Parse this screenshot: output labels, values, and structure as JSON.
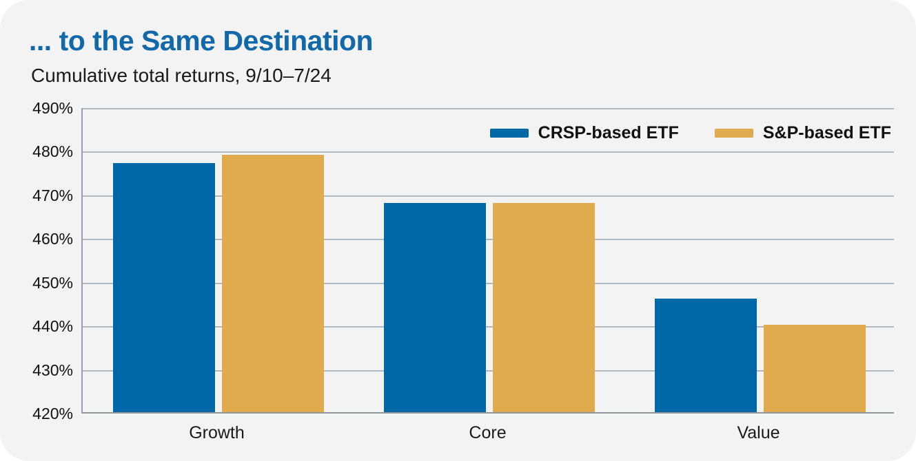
{
  "header": {
    "title": "... to the Same Destination",
    "subtitle": "Cumulative total returns, 9/10–7/24"
  },
  "colors": {
    "title_blue": "#1268a8",
    "card_background": "#f2f3f2",
    "gridline": "#b0b7bf",
    "axis_line": "#8f969e",
    "text": "#1a1a1a",
    "crsp_blue": "#0068a7",
    "sp_gold": "#dfab4d"
  },
  "chart_data": {
    "type": "bar",
    "title": "... to the Same Destination",
    "subtitle": "Cumulative total returns, 9/10–7/24",
    "categories": [
      "Growth",
      "Core",
      "Value"
    ],
    "series": [
      {
        "name": "CRSP-based ETF",
        "color": "#0068a7",
        "values": [
          477,
          468,
          446
        ]
      },
      {
        "name": "S&P-based ETF",
        "color": "#dfab4d",
        "values": [
          479,
          468,
          440
        ]
      }
    ],
    "xlabel": "",
    "ylabel": "",
    "ylim": [
      420,
      490
    ],
    "ytick_step": 10,
    "ytick_suffix": "%",
    "grid": true,
    "legend_position": "top-right-inside"
  }
}
